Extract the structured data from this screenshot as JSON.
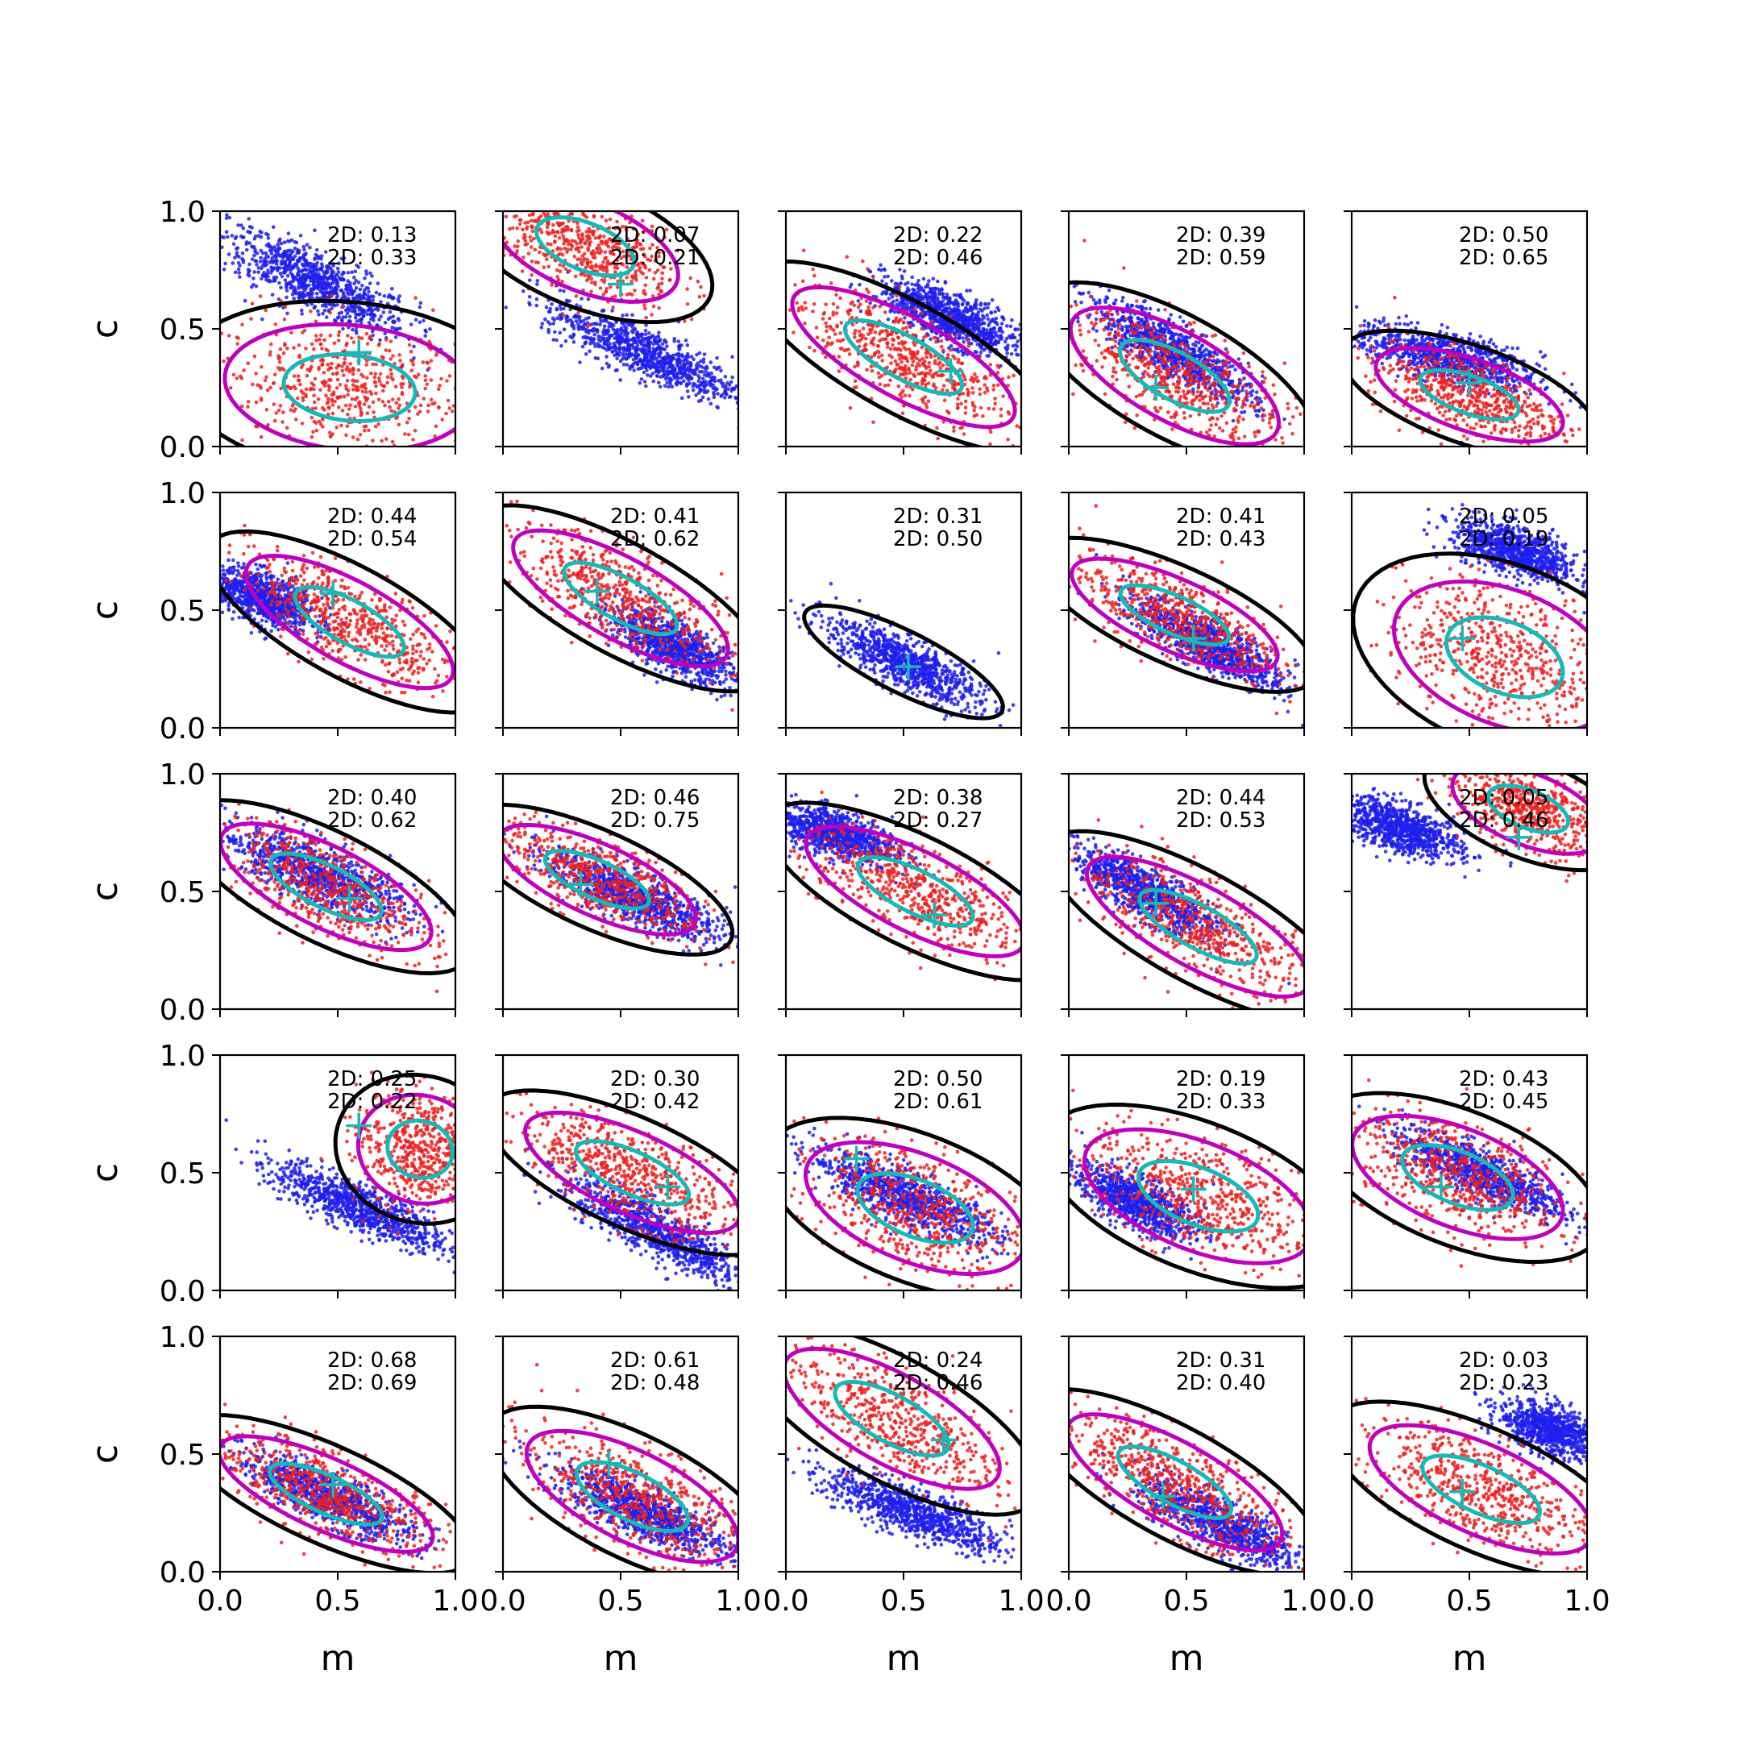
{
  "figure": {
    "xlabel": "m",
    "ylabel": "c"
  },
  "chart_data": {
    "type": "scatter",
    "grid": false,
    "rows": 5,
    "cols": 5,
    "xlim": [
      0,
      1
    ],
    "ylim": [
      0,
      1
    ],
    "xticks": [
      0.0,
      0.5,
      1.0
    ],
    "yticks": [
      0.0,
      0.5,
      1.0
    ],
    "xticklabels": [
      "0.0",
      "0.5",
      "1.0"
    ],
    "yticklabels": [
      "0.0",
      "0.5",
      "1.0"
    ],
    "colors": {
      "blue_points": "#1f1fee",
      "red_points": "#ee2020",
      "outer_contour": "#000000",
      "magenta_contour": "#bf00bf",
      "cyan_contour": "#17b8b8",
      "marker": "#17b8b8"
    },
    "panels": [
      {
        "annotations": [
          "2D: 0.13",
          "2D: 0.33"
        ],
        "marker": [
          0.59,
          0.4
        ],
        "blue": {
          "cx": 0.4,
          "cy": 0.7,
          "slope": -0.5,
          "sd_major": 0.22,
          "sd_minor": 0.06
        },
        "red": {
          "cx": 0.55,
          "cy": 0.25,
          "slope": -0.1,
          "sd_major": 0.28,
          "sd_minor": 0.14
        }
      },
      {
        "annotations": [
          "2D: 0.07",
          "2D: 0.21"
        ],
        "marker": [
          0.5,
          0.69
        ],
        "blue": {
          "cx": 0.6,
          "cy": 0.4,
          "slope": -0.45,
          "sd_major": 0.22,
          "sd_minor": 0.05
        },
        "red": {
          "cx": 0.35,
          "cy": 0.85,
          "slope": -0.4,
          "sd_major": 0.22,
          "sd_minor": 0.1
        }
      },
      {
        "annotations": [
          "2D: 0.22",
          "2D: 0.46"
        ],
        "marker": [
          0.7,
          0.32
        ],
        "blue": {
          "cx": 0.7,
          "cy": 0.55,
          "slope": -0.45,
          "sd_major": 0.16,
          "sd_minor": 0.05
        },
        "red": {
          "cx": 0.5,
          "cy": 0.38,
          "slope": -0.55,
          "sd_major": 0.28,
          "sd_minor": 0.09
        }
      },
      {
        "annotations": [
          "2D: 0.39",
          "2D: 0.59"
        ],
        "marker": [
          0.37,
          0.25
        ],
        "blue": {
          "cx": 0.45,
          "cy": 0.4,
          "slope": -0.6,
          "sd_major": 0.2,
          "sd_minor": 0.05
        },
        "red": {
          "cx": 0.45,
          "cy": 0.3,
          "slope": -0.55,
          "sd_major": 0.26,
          "sd_minor": 0.1
        }
      },
      {
        "annotations": [
          "2D: 0.50",
          "2D: 0.65"
        ],
        "marker": [
          0.5,
          0.27
        ],
        "blue": {
          "cx": 0.4,
          "cy": 0.38,
          "slope": -0.25,
          "sd_major": 0.2,
          "sd_minor": 0.05
        },
        "red": {
          "cx": 0.5,
          "cy": 0.22,
          "slope": -0.35,
          "sd_major": 0.22,
          "sd_minor": 0.08
        }
      },
      {
        "annotations": [
          "2D: 0.44",
          "2D: 0.54"
        ],
        "marker": [
          0.48,
          0.57
        ],
        "blue": {
          "cx": 0.18,
          "cy": 0.55,
          "slope": -0.4,
          "sd_major": 0.12,
          "sd_minor": 0.05
        },
        "red": {
          "cx": 0.55,
          "cy": 0.45,
          "slope": -0.55,
          "sd_major": 0.26,
          "sd_minor": 0.09
        }
      },
      {
        "annotations": [
          "2D: 0.41",
          "2D: 0.62"
        ],
        "marker": [
          0.4,
          0.58
        ],
        "blue": {
          "cx": 0.72,
          "cy": 0.35,
          "slope": -0.5,
          "sd_major": 0.15,
          "sd_minor": 0.05
        },
        "red": {
          "cx": 0.5,
          "cy": 0.55,
          "slope": -0.55,
          "sd_major": 0.27,
          "sd_minor": 0.09
        }
      },
      {
        "annotations": [
          "2D: 0.31",
          "2D: 0.50"
        ],
        "marker": [
          0.52,
          0.26
        ],
        "blue": {
          "cx": 0.5,
          "cy": 0.28,
          "slope": -0.5,
          "sd_major": 0.18,
          "sd_minor": 0.05
        },
        "red": {
          "cx": 0.5,
          "cy": 0.28,
          "slope": -0.5,
          "sd_major": 0.01,
          "sd_minor": 0.01
        }
      },
      {
        "annotations": [
          "2D: 0.41",
          "2D: 0.43"
        ],
        "marker": [
          0.53,
          0.38
        ],
        "blue": {
          "cx": 0.6,
          "cy": 0.35,
          "slope": -0.55,
          "sd_major": 0.18,
          "sd_minor": 0.05
        },
        "red": {
          "cx": 0.45,
          "cy": 0.48,
          "slope": -0.45,
          "sd_major": 0.25,
          "sd_minor": 0.08
        }
      },
      {
        "annotations": [
          "2D: 0.05",
          "2D: 0.19"
        ],
        "marker": [
          0.47,
          0.38
        ],
        "blue": {
          "cx": 0.7,
          "cy": 0.75,
          "slope": -0.35,
          "sd_major": 0.14,
          "sd_minor": 0.05
        },
        "red": {
          "cx": 0.65,
          "cy": 0.3,
          "slope": -0.4,
          "sd_major": 0.26,
          "sd_minor": 0.15
        }
      },
      {
        "annotations": [
          "2D: 0.40",
          "2D: 0.62"
        ],
        "marker": [
          0.55,
          0.47
        ],
        "blue": {
          "cx": 0.4,
          "cy": 0.58,
          "slope": -0.45,
          "sd_major": 0.22,
          "sd_minor": 0.06
        },
        "red": {
          "cx": 0.45,
          "cy": 0.52,
          "slope": -0.5,
          "sd_major": 0.26,
          "sd_minor": 0.09
        }
      },
      {
        "annotations": [
          "2D: 0.46",
          "2D: 0.75"
        ],
        "marker": [
          0.33,
          0.53
        ],
        "blue": {
          "cx": 0.55,
          "cy": 0.48,
          "slope": -0.45,
          "sd_major": 0.2,
          "sd_minor": 0.05
        },
        "red": {
          "cx": 0.4,
          "cy": 0.55,
          "slope": -0.45,
          "sd_major": 0.24,
          "sd_minor": 0.08
        }
      },
      {
        "annotations": [
          "2D: 0.38",
          "2D: 0.27"
        ],
        "marker": [
          0.63,
          0.4
        ],
        "blue": {
          "cx": 0.2,
          "cy": 0.75,
          "slope": -0.3,
          "sd_major": 0.14,
          "sd_minor": 0.05
        },
        "red": {
          "cx": 0.55,
          "cy": 0.5,
          "slope": -0.5,
          "sd_major": 0.27,
          "sd_minor": 0.09
        }
      },
      {
        "annotations": [
          "2D: 0.44",
          "2D: 0.53"
        ],
        "marker": [
          0.37,
          0.45
        ],
        "blue": {
          "cx": 0.32,
          "cy": 0.5,
          "slope": -0.55,
          "sd_major": 0.17,
          "sd_minor": 0.05
        },
        "red": {
          "cx": 0.55,
          "cy": 0.35,
          "slope": -0.55,
          "sd_major": 0.28,
          "sd_minor": 0.09
        }
      },
      {
        "annotations": [
          "2D: 0.05",
          "2D: 0.46"
        ],
        "marker": [
          0.71,
          0.73
        ],
        "blue": {
          "cx": 0.2,
          "cy": 0.77,
          "slope": -0.35,
          "sd_major": 0.14,
          "sd_minor": 0.05
        },
        "red": {
          "cx": 0.75,
          "cy": 0.85,
          "slope": -0.4,
          "sd_major": 0.18,
          "sd_minor": 0.08
        }
      },
      {
        "annotations": [
          "2D: 0.25",
          "2D: 0.22"
        ],
        "marker": [
          0.59,
          0.7
        ],
        "blue": {
          "cx": 0.6,
          "cy": 0.35,
          "slope": -0.45,
          "sd_major": 0.2,
          "sd_minor": 0.05
        },
        "red": {
          "cx": 0.85,
          "cy": 0.6,
          "slope": -0.3,
          "sd_major": 0.14,
          "sd_minor": 0.12
        }
      },
      {
        "annotations": [
          "2D: 0.30",
          "2D: 0.42"
        ],
        "marker": [
          0.7,
          0.44
        ],
        "blue": {
          "cx": 0.65,
          "cy": 0.25,
          "slope": -0.55,
          "sd_major": 0.22,
          "sd_minor": 0.05
        },
        "red": {
          "cx": 0.55,
          "cy": 0.5,
          "slope": -0.45,
          "sd_major": 0.26,
          "sd_minor": 0.09
        }
      },
      {
        "annotations": [
          "2D: 0.50",
          "2D: 0.61"
        ],
        "marker": [
          0.3,
          0.56
        ],
        "blue": {
          "cx": 0.5,
          "cy": 0.4,
          "slope": -0.45,
          "sd_major": 0.22,
          "sd_minor": 0.05
        },
        "red": {
          "cx": 0.55,
          "cy": 0.35,
          "slope": -0.4,
          "sd_major": 0.26,
          "sd_minor": 0.12
        }
      },
      {
        "annotations": [
          "2D: 0.19",
          "2D: 0.33"
        ],
        "marker": [
          0.53,
          0.43
        ],
        "blue": {
          "cx": 0.28,
          "cy": 0.38,
          "slope": -0.5,
          "sd_major": 0.14,
          "sd_minor": 0.05
        },
        "red": {
          "cx": 0.55,
          "cy": 0.4,
          "slope": -0.4,
          "sd_major": 0.27,
          "sd_minor": 0.12
        }
      },
      {
        "annotations": [
          "2D: 0.43",
          "2D: 0.45"
        ],
        "marker": [
          0.38,
          0.44
        ],
        "blue": {
          "cx": 0.55,
          "cy": 0.5,
          "slope": -0.45,
          "sd_major": 0.2,
          "sd_minor": 0.05
        },
        "red": {
          "cx": 0.45,
          "cy": 0.48,
          "slope": -0.4,
          "sd_major": 0.25,
          "sd_minor": 0.11
        }
      },
      {
        "annotations": [
          "2D: 0.68",
          "2D: 0.69"
        ],
        "marker": [
          0.48,
          0.37
        ],
        "blue": {
          "cx": 0.45,
          "cy": 0.32,
          "slope": -0.45,
          "sd_major": 0.2,
          "sd_minor": 0.05
        },
        "red": {
          "cx": 0.45,
          "cy": 0.33,
          "slope": -0.45,
          "sd_major": 0.26,
          "sd_minor": 0.08
        }
      },
      {
        "annotations": [
          "2D: 0.61",
          "2D: 0.48"
        ],
        "marker": [
          0.45,
          0.46
        ],
        "blue": {
          "cx": 0.6,
          "cy": 0.25,
          "slope": -0.45,
          "sd_major": 0.2,
          "sd_minor": 0.05
        },
        "red": {
          "cx": 0.55,
          "cy": 0.32,
          "slope": -0.5,
          "sd_major": 0.26,
          "sd_minor": 0.1
        }
      },
      {
        "annotations": [
          "2D: 0.24",
          "2D: 0.46"
        ],
        "marker": [
          0.67,
          0.56
        ],
        "blue": {
          "cx": 0.55,
          "cy": 0.25,
          "slope": -0.4,
          "sd_major": 0.2,
          "sd_minor": 0.05
        },
        "red": {
          "cx": 0.45,
          "cy": 0.65,
          "slope": -0.55,
          "sd_major": 0.27,
          "sd_minor": 0.1
        }
      },
      {
        "annotations": [
          "2D: 0.31",
          "2D: 0.40"
        ],
        "marker": [
          0.4,
          0.32
        ],
        "blue": {
          "cx": 0.65,
          "cy": 0.2,
          "slope": -0.5,
          "sd_major": 0.2,
          "sd_minor": 0.05
        },
        "red": {
          "cx": 0.45,
          "cy": 0.38,
          "slope": -0.55,
          "sd_major": 0.27,
          "sd_minor": 0.09
        }
      },
      {
        "annotations": [
          "2D: 0.03",
          "2D: 0.23"
        ],
        "marker": [
          0.47,
          0.34
        ],
        "blue": {
          "cx": 0.85,
          "cy": 0.6,
          "slope": -0.35,
          "sd_major": 0.12,
          "sd_minor": 0.05
        },
        "red": {
          "cx": 0.55,
          "cy": 0.35,
          "slope": -0.45,
          "sd_major": 0.27,
          "sd_minor": 0.1
        }
      }
    ]
  }
}
